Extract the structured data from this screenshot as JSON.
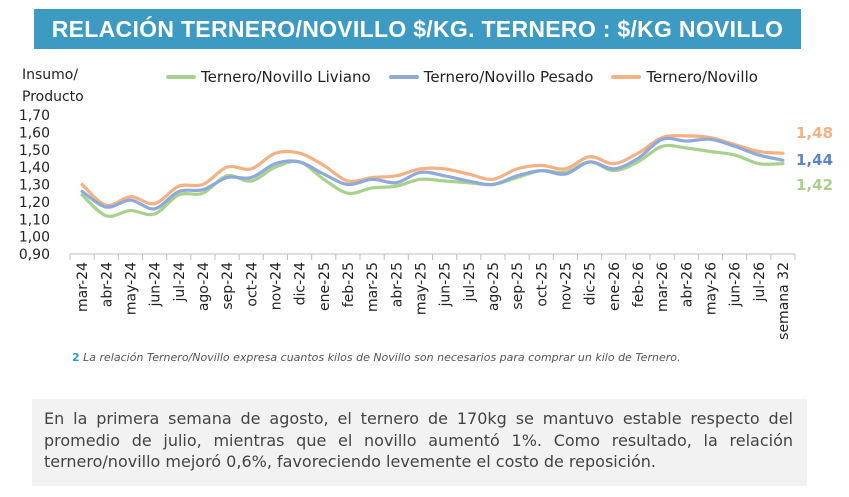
{
  "header": {
    "title": "RELACIÓN TERNERO/NOVILLO $/KG. TERNERO : $/KG NOVILLO"
  },
  "ylabel": {
    "line1": "Insumo/",
    "line2": "Producto"
  },
  "footnote": {
    "num": "2",
    "text": "La relación Ternero/Novillo expresa cuantos kilos de Novillo son necesarios para comprar un kilo de Ternero."
  },
  "comment": {
    "text": "En la primera semana de agosto, el ternero de 170kg se mantuvo estable respecto del promedio de julio, mientras que el novillo aumentó 1%. Como resultado, la relación ternero/novillo mejoró 0,6%, favoreciendo levemente el costo de reposición."
  },
  "chart_data": {
    "type": "line",
    "ylabel": "Insumo/ Producto",
    "ylim": [
      0.9,
      1.7
    ],
    "yticks": [
      "0,90",
      "1,00",
      "1,10",
      "1,20",
      "1,30",
      "1,40",
      "1,50",
      "1,60",
      "1,70"
    ],
    "yticks_values": [
      0.9,
      1.0,
      1.1,
      1.2,
      1.3,
      1.4,
      1.5,
      1.6,
      1.7
    ],
    "grid": false,
    "legend": "top",
    "categories": [
      "mar-24",
      "abr-24",
      "may-24",
      "jun-24",
      "jul-24",
      "ago-24",
      "sep-24",
      "oct-24",
      "nov-24",
      "dic-24",
      "ene-25",
      "feb-25",
      "mar-25",
      "abr-25",
      "may-25",
      "jun-25",
      "jul-25",
      "ago-25",
      "sep-25",
      "oct-25",
      "nov-25",
      "dic-25",
      "ene-26",
      "feb-26",
      "mar-26",
      "abr-26",
      "may-26",
      "jun-26",
      "jul-26",
      "semana 32"
    ],
    "series": [
      {
        "name": "Ternero/Novillo Liviano",
        "color": "#a9d18e",
        "values": [
          1.24,
          1.12,
          1.15,
          1.13,
          1.24,
          1.25,
          1.35,
          1.32,
          1.4,
          1.43,
          1.33,
          1.25,
          1.28,
          1.29,
          1.33,
          1.32,
          1.31,
          1.3,
          1.34,
          1.38,
          1.37,
          1.43,
          1.38,
          1.43,
          1.52,
          1.51,
          1.49,
          1.47,
          1.42,
          1.42
        ]
      },
      {
        "name": "Ternero/Novillo Pesado",
        "color": "#8eaadb",
        "values": [
          1.26,
          1.17,
          1.21,
          1.16,
          1.26,
          1.27,
          1.34,
          1.34,
          1.42,
          1.43,
          1.36,
          1.3,
          1.33,
          1.31,
          1.37,
          1.35,
          1.32,
          1.3,
          1.35,
          1.38,
          1.36,
          1.43,
          1.39,
          1.45,
          1.56,
          1.55,
          1.56,
          1.52,
          1.47,
          1.44
        ]
      },
      {
        "name": "Ternero/Novillo",
        "color": "#f4b183",
        "values": [
          1.3,
          1.18,
          1.23,
          1.19,
          1.29,
          1.3,
          1.4,
          1.39,
          1.48,
          1.48,
          1.41,
          1.32,
          1.34,
          1.35,
          1.39,
          1.39,
          1.36,
          1.33,
          1.39,
          1.41,
          1.39,
          1.46,
          1.42,
          1.48,
          1.57,
          1.58,
          1.57,
          1.53,
          1.49,
          1.48
        ]
      }
    ],
    "end_labels": [
      {
        "series": "Ternero/Novillo",
        "text": "1,48",
        "color": "#f4b183"
      },
      {
        "series": "Ternero/Novillo Pesado",
        "text": "1,44",
        "color": "#5b86c5"
      },
      {
        "series": "Ternero/Novillo Liviano",
        "text": "1,42",
        "color": "#a9d18e"
      }
    ]
  }
}
